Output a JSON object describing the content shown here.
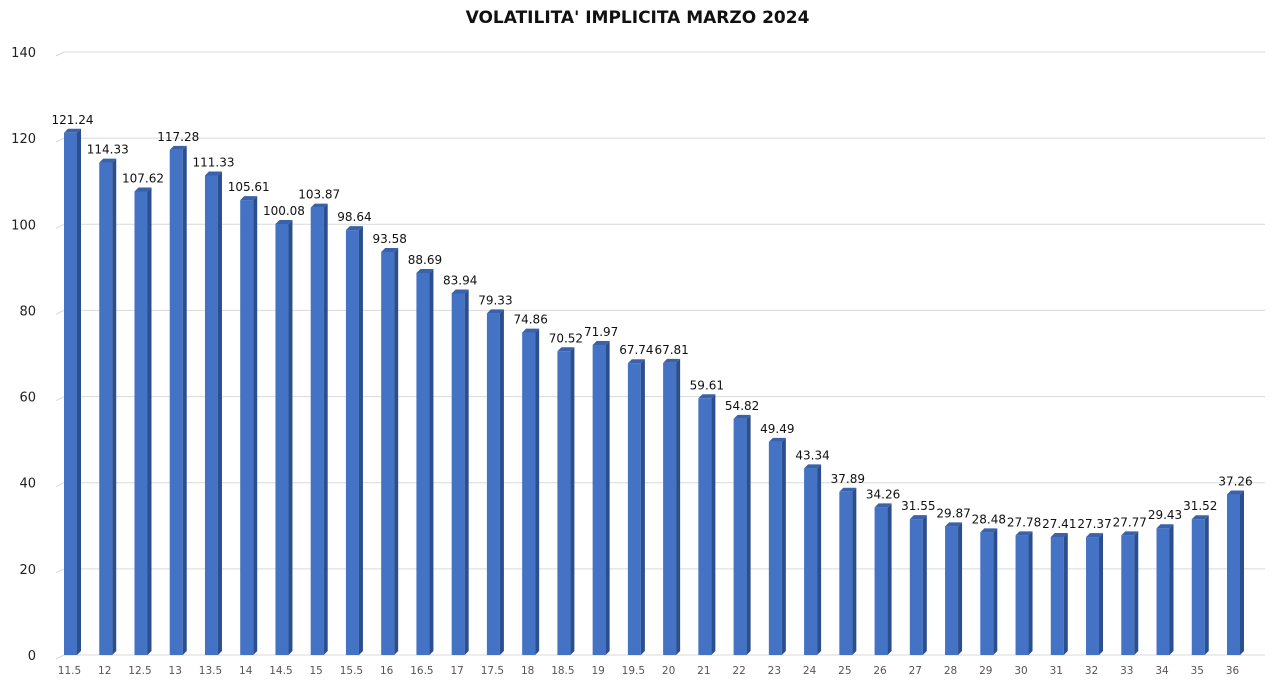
{
  "chart_data": {
    "type": "bar",
    "title": "VOLATILITA' IMPLICITA MARZO 2024",
    "xlabel": "",
    "ylabel": "",
    "ylim": [
      0,
      140
    ],
    "yticks": [
      0,
      20,
      40,
      60,
      80,
      100,
      120,
      140
    ],
    "grid": true,
    "legend": "none",
    "bar_color": "#4472C4",
    "bar_side_color": "#2A4E8E",
    "bar_top_color": "#3A62AA",
    "grid_color": "#D9D9D9",
    "categories": [
      "11.5",
      "12",
      "12.5",
      "13",
      "13.5",
      "14",
      "14.5",
      "15",
      "15.5",
      "16",
      "16.5",
      "17",
      "17.5",
      "18",
      "18.5",
      "19",
      "19.5",
      "20",
      "21",
      "22",
      "23",
      "24",
      "25",
      "26",
      "27",
      "28",
      "29",
      "30",
      "31",
      "32",
      "33",
      "34",
      "35",
      "36"
    ],
    "values": [
      121.24,
      114.33,
      107.62,
      117.28,
      111.33,
      105.61,
      100.08,
      103.87,
      98.64,
      93.58,
      88.69,
      83.94,
      79.33,
      74.86,
      70.52,
      71.97,
      67.74,
      67.81,
      59.61,
      54.82,
      49.49,
      43.34,
      37.89,
      34.26,
      31.55,
      29.87,
      28.48,
      27.78,
      27.41,
      27.37,
      27.77,
      29.43,
      31.52,
      37.26
    ],
    "labels": [
      "121.24",
      "114.33",
      "107.62",
      "117.28",
      "111.33",
      "105.61",
      "100.08",
      "103.87",
      "98.64",
      "93.58",
      "88.69",
      "83.94",
      "79.33",
      "74.86",
      "70.52",
      "71.97",
      "67.74",
      "67.81",
      "59.61",
      "54.82",
      "49.49",
      "43.34",
      "37.89",
      "34.26",
      "31.55",
      "29.87",
      "28.48",
      "27.78",
      "27.41",
      "27.37",
      "27.77",
      "29.43",
      "31.52",
      "37.26"
    ]
  }
}
